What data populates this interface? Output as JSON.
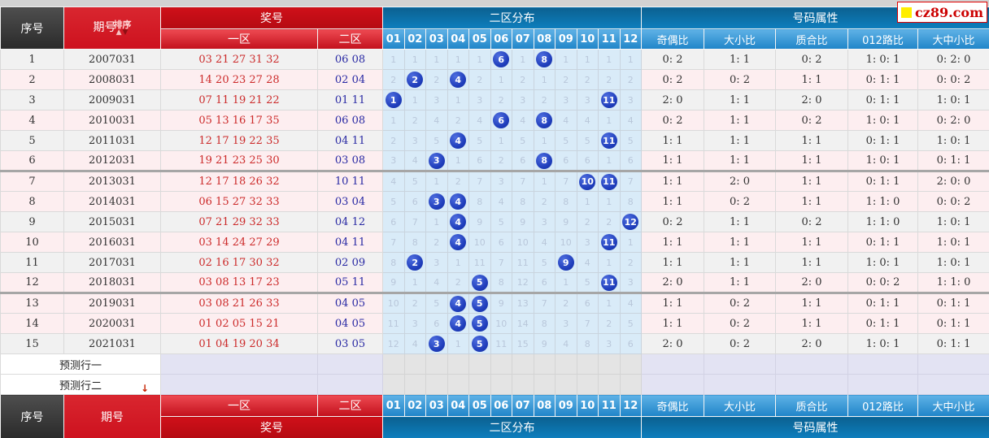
{
  "brand": {
    "logo_text": "cz89.com"
  },
  "colors": {
    "red-main": "#cd111e",
    "red-dark": "#b50a12",
    "blue-band-top": "#0b6191",
    "blue-band-bot": "#0e7fbe",
    "lblue-top": "#5fb2e6",
    "lblue-bot": "#1f84c8",
    "grid-bg": "#d9ebf8",
    "ball-blue": "#1e3cba",
    "row-pink": "#fdeef0",
    "row-gray": "#f1f1f1",
    "zone1-text": "#cc2a2a",
    "zone2-text": "#2a2aa4",
    "miss-text": "#b9c7da",
    "lavender": "#e3e3f3",
    "pred-grid": "#e4e4e4"
  },
  "header": {
    "seq": "序号",
    "period": "期号",
    "sort": "排序",
    "sort_up": "▲",
    "sort_down": "▼",
    "prize": "奖号",
    "zone1": "一区",
    "zone2": "二区",
    "zone2_dist": "二区分布",
    "attrs_group": "号码属性",
    "ball_cols": [
      "01",
      "02",
      "03",
      "04",
      "05",
      "06",
      "07",
      "08",
      "09",
      "10",
      "11",
      "12"
    ],
    "attr_cols": [
      "奇偶比",
      "大小比",
      "质合比",
      "012路比",
      "大中小比"
    ]
  },
  "rows": [
    {
      "seq": "1",
      "period": "2007031",
      "zone1": "03 21 27 31 32",
      "zone2": "06 08",
      "grid": [
        "1",
        "1",
        "1",
        "1",
        "1",
        "6",
        "1",
        "8",
        "1",
        "1",
        "1",
        "1"
      ],
      "hits": [
        6,
        8
      ],
      "attrs": [
        "0: 2",
        "1: 1",
        "0: 2",
        "1: 0: 1",
        "0: 2: 0"
      ],
      "pink": false,
      "sep": false
    },
    {
      "seq": "2",
      "period": "2008031",
      "zone1": "14 20 23 27 28",
      "zone2": "02 04",
      "grid": [
        "2",
        "2",
        "2",
        "4",
        "2",
        "1",
        "2",
        "1",
        "2",
        "2",
        "2",
        "2"
      ],
      "hits": [
        2,
        4
      ],
      "attrs": [
        "0: 2",
        "0: 2",
        "1: 1",
        "0: 1: 1",
        "0: 0: 2"
      ],
      "pink": true,
      "sep": false
    },
    {
      "seq": "3",
      "period": "2009031",
      "zone1": "07 11 19 21 22",
      "zone2": "01 11",
      "grid": [
        "1",
        "1",
        "3",
        "1",
        "3",
        "2",
        "3",
        "2",
        "3",
        "3",
        "11",
        "3"
      ],
      "hits": [
        1,
        11
      ],
      "attrs": [
        "2: 0",
        "1: 1",
        "2: 0",
        "0: 1: 1",
        "1: 0: 1"
      ],
      "pink": false,
      "sep": false
    },
    {
      "seq": "4",
      "period": "2010031",
      "zone1": "05 13 16 17 35",
      "zone2": "06 08",
      "grid": [
        "1",
        "2",
        "4",
        "2",
        "4",
        "6",
        "4",
        "8",
        "4",
        "4",
        "1",
        "4"
      ],
      "hits": [
        6,
        8
      ],
      "attrs": [
        "0: 2",
        "1: 1",
        "0: 2",
        "1: 0: 1",
        "0: 2: 0"
      ],
      "pink": true,
      "sep": false
    },
    {
      "seq": "5",
      "period": "2011031",
      "zone1": "12 17 19 22 35",
      "zone2": "04 11",
      "grid": [
        "2",
        "3",
        "5",
        "4",
        "5",
        "1",
        "5",
        "1",
        "5",
        "5",
        "11",
        "5"
      ],
      "hits": [
        4,
        11
      ],
      "attrs": [
        "1: 1",
        "1: 1",
        "1: 1",
        "0: 1: 1",
        "1: 0: 1"
      ],
      "pink": false,
      "sep": false
    },
    {
      "seq": "6",
      "period": "2012031",
      "zone1": "19 21 23 25 30",
      "zone2": "03 08",
      "grid": [
        "3",
        "4",
        "3",
        "1",
        "6",
        "2",
        "6",
        "8",
        "6",
        "6",
        "1",
        "6"
      ],
      "hits": [
        3,
        8
      ],
      "attrs": [
        "1: 1",
        "1: 1",
        "1: 1",
        "1: 0: 1",
        "0: 1: 1"
      ],
      "pink": true,
      "sep": true
    },
    {
      "seq": "7",
      "period": "2013031",
      "zone1": "12 17 18 26 32",
      "zone2": "10 11",
      "grid": [
        "4",
        "5",
        "1",
        "2",
        "7",
        "3",
        "7",
        "1",
        "7",
        "10",
        "11",
        "7"
      ],
      "hits": [
        10,
        11
      ],
      "attrs": [
        "1: 1",
        "2: 0",
        "1: 1",
        "0: 1: 1",
        "2: 0: 0"
      ],
      "pink": true,
      "sep": false
    },
    {
      "seq": "8",
      "period": "2014031",
      "zone1": "06 15 27 32 33",
      "zone2": "03 04",
      "grid": [
        "5",
        "6",
        "3",
        "4",
        "8",
        "4",
        "8",
        "2",
        "8",
        "1",
        "1",
        "8"
      ],
      "hits": [
        3,
        4
      ],
      "attrs": [
        "1: 1",
        "0: 2",
        "1: 1",
        "1: 1: 0",
        "0: 0: 2"
      ],
      "pink": true,
      "sep": false
    },
    {
      "seq": "9",
      "period": "2015031",
      "zone1": "07 21 29 32 33",
      "zone2": "04 12",
      "grid": [
        "6",
        "7",
        "1",
        "4",
        "9",
        "5",
        "9",
        "3",
        "9",
        "2",
        "2",
        "12"
      ],
      "hits": [
        4,
        12
      ],
      "attrs": [
        "0: 2",
        "1: 1",
        "0: 2",
        "1: 1: 0",
        "1: 0: 1"
      ],
      "pink": false,
      "sep": false
    },
    {
      "seq": "10",
      "period": "2016031",
      "zone1": "03 14 24 27 29",
      "zone2": "04 11",
      "grid": [
        "7",
        "8",
        "2",
        "4",
        "10",
        "6",
        "10",
        "4",
        "10",
        "3",
        "11",
        "1"
      ],
      "hits": [
        4,
        11
      ],
      "attrs": [
        "1: 1",
        "1: 1",
        "1: 1",
        "0: 1: 1",
        "1: 0: 1"
      ],
      "pink": true,
      "sep": false
    },
    {
      "seq": "11",
      "period": "2017031",
      "zone1": "02 16 17 30 32",
      "zone2": "02 09",
      "grid": [
        "8",
        "2",
        "3",
        "1",
        "11",
        "7",
        "11",
        "5",
        "9",
        "4",
        "1",
        "2"
      ],
      "hits": [
        2,
        9
      ],
      "attrs": [
        "1: 1",
        "1: 1",
        "1: 1",
        "1: 0: 1",
        "1: 0: 1"
      ],
      "pink": false,
      "sep": false
    },
    {
      "seq": "12",
      "period": "2018031",
      "zone1": "03 08 13 17 23",
      "zone2": "05 11",
      "grid": [
        "9",
        "1",
        "4",
        "2",
        "5",
        "8",
        "12",
        "6",
        "1",
        "5",
        "11",
        "3"
      ],
      "hits": [
        5,
        11
      ],
      "attrs": [
        "2: 0",
        "1: 1",
        "2: 0",
        "0: 0: 2",
        "1: 1: 0"
      ],
      "pink": true,
      "sep": true
    },
    {
      "seq": "13",
      "period": "2019031",
      "zone1": "03 08 21 26 33",
      "zone2": "04 05",
      "grid": [
        "10",
        "2",
        "5",
        "4",
        "5",
        "9",
        "13",
        "7",
        "2",
        "6",
        "1",
        "4"
      ],
      "hits": [
        4,
        5
      ],
      "attrs": [
        "1: 1",
        "0: 2",
        "1: 1",
        "0: 1: 1",
        "0: 1: 1"
      ],
      "pink": true,
      "sep": false
    },
    {
      "seq": "14",
      "period": "2020031",
      "zone1": "01 02 05 15 21",
      "zone2": "04 05",
      "grid": [
        "11",
        "3",
        "6",
        "4",
        "5",
        "10",
        "14",
        "8",
        "3",
        "7",
        "2",
        "5"
      ],
      "hits": [
        4,
        5
      ],
      "attrs": [
        "1: 1",
        "0: 2",
        "1: 1",
        "0: 1: 1",
        "0: 1: 1"
      ],
      "pink": true,
      "sep": false
    },
    {
      "seq": "15",
      "period": "2021031",
      "zone1": "01 04 19 20 34",
      "zone2": "03 05",
      "grid": [
        "12",
        "4",
        "3",
        "1",
        "5",
        "11",
        "15",
        "9",
        "4",
        "8",
        "3",
        "6"
      ],
      "hits": [
        3,
        5
      ],
      "attrs": [
        "2: 0",
        "0: 2",
        "2: 0",
        "1: 0: 1",
        "0: 1: 1"
      ],
      "pink": false,
      "sep": false
    }
  ],
  "predictions": [
    {
      "label": "预测行一",
      "arrow": ""
    },
    {
      "label": "预测行二",
      "arrow": "↓"
    }
  ]
}
